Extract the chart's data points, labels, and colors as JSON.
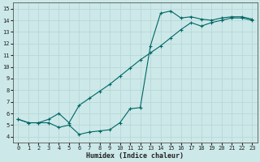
{
  "title": "",
  "xlabel": "Humidex (Indice chaleur)",
  "ylabel": "",
  "background_color": "#cce8e8",
  "grid_color": "#b8d8d8",
  "line_color": "#006666",
  "xlim": [
    -0.5,
    23.5
  ],
  "ylim": [
    3.5,
    15.5
  ],
  "xticks": [
    0,
    1,
    2,
    3,
    4,
    5,
    6,
    7,
    8,
    9,
    10,
    11,
    12,
    13,
    14,
    15,
    16,
    17,
    18,
    19,
    20,
    21,
    22,
    23
  ],
  "yticks": [
    4,
    5,
    6,
    7,
    8,
    9,
    10,
    11,
    12,
    13,
    14,
    15
  ],
  "line1_x": [
    0,
    1,
    2,
    3,
    4,
    5,
    6,
    7,
    8,
    9,
    10,
    11,
    12,
    13,
    14,
    15,
    16,
    17,
    18,
    19,
    20,
    21,
    22,
    23
  ],
  "line1_y": [
    5.5,
    5.2,
    5.2,
    5.5,
    6.0,
    5.2,
    6.7,
    7.3,
    7.9,
    8.5,
    9.2,
    9.9,
    10.6,
    11.2,
    11.8,
    12.5,
    13.2,
    13.8,
    13.5,
    13.8,
    14.0,
    14.2,
    14.2,
    14.0
  ],
  "line2_x": [
    0,
    1,
    2,
    3,
    4,
    5,
    6,
    7,
    8,
    9,
    10,
    11,
    12,
    13,
    14,
    15,
    16,
    17,
    18,
    19,
    20,
    21,
    22,
    23
  ],
  "line2_y": [
    5.5,
    5.2,
    5.2,
    5.2,
    4.8,
    5.0,
    4.2,
    4.4,
    4.5,
    4.6,
    5.2,
    6.4,
    6.5,
    11.8,
    14.6,
    14.8,
    14.2,
    14.3,
    14.1,
    14.0,
    14.2,
    14.3,
    14.3,
    14.1
  ]
}
